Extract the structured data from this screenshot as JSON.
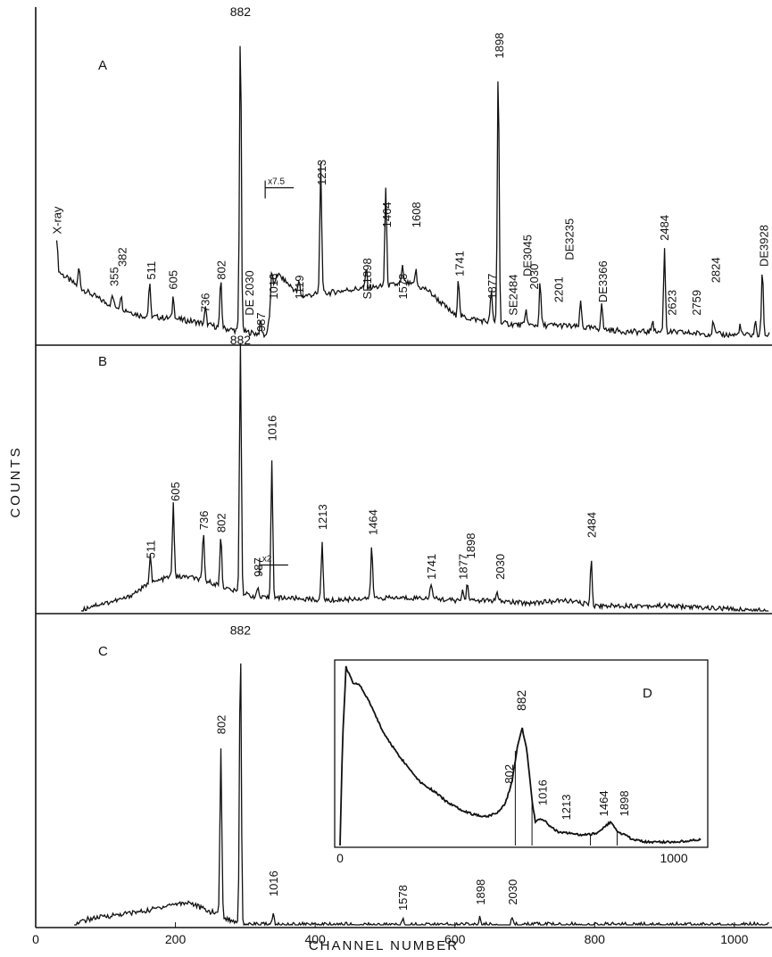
{
  "chart_data": {
    "type": "line",
    "xlabel": "CHANNEL NUMBER",
    "ylabel": "COUNTS",
    "xlim": [
      0,
      1050
    ],
    "x_ticks": [
      "0",
      "200",
      "400",
      "600",
      "800",
      "1000"
    ],
    "x_tick_values": [
      0,
      200,
      400,
      600,
      800,
      1000
    ],
    "panels": [
      {
        "id": "A",
        "label": "A",
        "baseline": [
          [
            30,
            0.22
          ],
          [
            60,
            0.17
          ],
          [
            100,
            0.12
          ],
          [
            150,
            0.08
          ],
          [
            200,
            0.07
          ],
          [
            230,
            0.06
          ],
          [
            270,
            0.04
          ],
          [
            300,
            0.03
          ],
          [
            330,
            0.02
          ],
          [
            345,
            0.21
          ],
          [
            380,
            0.14
          ],
          [
            420,
            0.15
          ],
          [
            450,
            0.16
          ],
          [
            500,
            0.17
          ],
          [
            530,
            0.18
          ],
          [
            560,
            0.16
          ],
          [
            600,
            0.08
          ],
          [
            650,
            0.06
          ],
          [
            700,
            0.05
          ],
          [
            750,
            0.05
          ],
          [
            800,
            0.04
          ],
          [
            850,
            0.03
          ],
          [
            900,
            0.03
          ],
          [
            1000,
            0.02
          ],
          [
            1050,
            0.02
          ]
        ],
        "peaks": [
          {
            "x": 30,
            "h": 0.1
          },
          {
            "x": 62,
            "h": 0.06
          },
          {
            "x": 110,
            "h": 0.03
          },
          {
            "x": 122,
            "h": 0.04
          },
          {
            "x": 163,
            "h": 0.1
          },
          {
            "x": 197,
            "h": 0.07
          },
          {
            "x": 243,
            "h": 0.05
          },
          {
            "x": 265,
            "h": 0.15
          },
          {
            "x": 293,
            "h": 0.94
          },
          {
            "x": 322,
            "h": 0.04
          },
          {
            "x": 338,
            "h": 0.1
          },
          {
            "x": 377,
            "h": 0.04
          },
          {
            "x": 408,
            "h": 0.4
          },
          {
            "x": 473,
            "h": 0.06
          },
          {
            "x": 501,
            "h": 0.3
          },
          {
            "x": 525,
            "h": 0.05
          },
          {
            "x": 544,
            "h": 0.05
          },
          {
            "x": 605,
            "h": 0.12
          },
          {
            "x": 652,
            "h": 0.1
          },
          {
            "x": 662,
            "h": 0.8
          },
          {
            "x": 702,
            "h": 0.05
          },
          {
            "x": 722,
            "h": 0.13
          },
          {
            "x": 780,
            "h": 0.08
          },
          {
            "x": 810,
            "h": 0.08
          },
          {
            "x": 883,
            "h": 0.04
          },
          {
            "x": 900,
            "h": 0.26
          },
          {
            "x": 970,
            "h": 0.04
          },
          {
            "x": 1008,
            "h": 0.03
          },
          {
            "x": 1030,
            "h": 0.04
          },
          {
            "x": 1040,
            "h": 0.2
          }
        ],
        "peak_labels": [
          {
            "text": "X-ray",
            "x": 30,
            "y": 0.33
          },
          {
            "text": "355",
            "x": 112,
            "y": 0.17
          },
          {
            "text": "382",
            "x": 123,
            "y": 0.23
          },
          {
            "text": "511",
            "x": 165,
            "y": 0.19
          },
          {
            "text": "605",
            "x": 196,
            "y": 0.16
          },
          {
            "text": "736",
            "x": 242,
            "y": 0.09
          },
          {
            "text": "802",
            "x": 265,
            "y": 0.19
          },
          {
            "text": "882",
            "x": 293,
            "y": 1.0
          },
          {
            "text": "DE 2030",
            "x": 305,
            "y": 0.08
          },
          {
            "text": "987",
            "x": 322,
            "y": 0.03
          },
          {
            "text": "1016",
            "x": 340,
            "y": 0.13
          },
          {
            "text": "x7.5",
            "x": 354,
            "y": 0.5
          },
          {
            "text": "1119",
            "x": 377,
            "y": 0.13
          },
          {
            "text": "1213",
            "x": 409,
            "y": 0.48
          },
          {
            "text": "SE1898",
            "x": 474,
            "y": 0.13
          },
          {
            "text": "1464",
            "x": 502,
            "y": 0.35
          },
          {
            "text": "1578",
            "x": 525,
            "y": 0.13
          },
          {
            "text": "1608",
            "x": 544,
            "y": 0.35
          },
          {
            "text": "1741",
            "x": 606,
            "y": 0.2
          },
          {
            "text": "1877",
            "x": 653,
            "y": 0.13
          },
          {
            "text": "1898",
            "x": 663,
            "y": 0.87
          },
          {
            "text": "SE2484",
            "x": 683,
            "y": 0.08
          },
          {
            "text": "DE3045",
            "x": 703,
            "y": 0.2
          },
          {
            "text": "2030",
            "x": 713,
            "y": 0.16
          },
          {
            "text": "2201",
            "x": 748,
            "y": 0.12
          },
          {
            "text": "DE3235",
            "x": 763,
            "y": 0.25
          },
          {
            "text": "DE3366",
            "x": 811,
            "y": 0.12
          },
          {
            "text": "2484",
            "x": 899,
            "y": 0.31
          },
          {
            "text": "2623",
            "x": 910,
            "y": 0.08
          },
          {
            "text": "2759",
            "x": 945,
            "y": 0.08
          },
          {
            "text": "2824",
            "x": 973,
            "y": 0.18
          },
          {
            "text": "DE3928",
            "x": 1042,
            "y": 0.23
          }
        ]
      },
      {
        "id": "B",
        "label": "B",
        "baseline": [
          [
            65,
            0.0
          ],
          [
            80,
            0.02
          ],
          [
            100,
            0.03
          ],
          [
            130,
            0.05
          ],
          [
            160,
            0.1
          ],
          [
            190,
            0.13
          ],
          [
            220,
            0.13
          ],
          [
            250,
            0.11
          ],
          [
            280,
            0.08
          ],
          [
            320,
            0.05
          ],
          [
            360,
            0.05
          ],
          [
            420,
            0.04
          ],
          [
            480,
            0.05
          ],
          [
            520,
            0.05
          ],
          [
            560,
            0.05
          ],
          [
            600,
            0.04
          ],
          [
            650,
            0.04
          ],
          [
            700,
            0.03
          ],
          [
            760,
            0.04
          ],
          [
            800,
            0.02
          ],
          [
            900,
            0.02
          ],
          [
            1050,
            0.0
          ]
        ],
        "peaks": [
          {
            "x": 164,
            "h": 0.12
          },
          {
            "x": 197,
            "h": 0.28
          },
          {
            "x": 240,
            "h": 0.18
          },
          {
            "x": 265,
            "h": 0.2
          },
          {
            "x": 293,
            "h": 0.96
          },
          {
            "x": 318,
            "h": 0.04
          },
          {
            "x": 338,
            "h": 0.53
          },
          {
            "x": 410,
            "h": 0.22
          },
          {
            "x": 481,
            "h": 0.2
          },
          {
            "x": 566,
            "h": 0.06
          },
          {
            "x": 611,
            "h": 0.04
          },
          {
            "x": 618,
            "h": 0.07
          },
          {
            "x": 660,
            "h": 0.03
          },
          {
            "x": 795,
            "h": 0.18
          }
        ],
        "peak_labels": [
          {
            "text": "511",
            "x": 164,
            "y": 0.2
          },
          {
            "text": "605",
            "x": 199,
            "y": 0.42
          },
          {
            "text": "736",
            "x": 240,
            "y": 0.31
          },
          {
            "text": "802",
            "x": 265,
            "y": 0.3
          },
          {
            "text": "882",
            "x": 293,
            "y": 1.02
          },
          {
            "text": "987",
            "x": 318,
            "y": 0.13
          },
          {
            "text": "1016",
            "x": 338,
            "y": 0.65
          },
          {
            "text": "x2",
            "x": 346,
            "y": 0.21
          },
          {
            "text": "1213",
            "x": 410,
            "y": 0.31
          },
          {
            "text": "1464",
            "x": 482,
            "y": 0.29
          },
          {
            "text": "1741",
            "x": 566,
            "y": 0.12
          },
          {
            "text": "1877",
            "x": 611,
            "y": 0.12
          },
          {
            "text": "1898",
            "x": 622,
            "y": 0.2
          },
          {
            "text": "2030",
            "x": 664,
            "y": 0.12
          },
          {
            "text": "2484",
            "x": 795,
            "y": 0.28
          }
        ]
      },
      {
        "id": "C",
        "label": "C",
        "baseline": [
          [
            55,
            0.0
          ],
          [
            75,
            0.02
          ],
          [
            100,
            0.03
          ],
          [
            130,
            0.04
          ],
          [
            160,
            0.05
          ],
          [
            190,
            0.07
          ],
          [
            220,
            0.08
          ],
          [
            245,
            0.05
          ],
          [
            260,
            0.04
          ],
          [
            275,
            0.02
          ],
          [
            300,
            0.0
          ],
          [
            1050,
            0.0
          ]
        ],
        "peaks": [
          {
            "x": 265,
            "h": 0.59
          },
          {
            "x": 293,
            "h": 0.99
          },
          {
            "x": 340,
            "h": 0.04
          },
          {
            "x": 525,
            "h": 0.02
          },
          {
            "x": 636,
            "h": 0.03
          },
          {
            "x": 682,
            "h": 0.02
          }
        ],
        "peak_labels": [
          {
            "text": "802",
            "x": 265,
            "y": 0.67
          },
          {
            "text": "882",
            "x": 293,
            "y": 1.02
          },
          {
            "text": "1016",
            "x": 340,
            "y": 0.1
          },
          {
            "text": "1578",
            "x": 525,
            "y": 0.05
          },
          {
            "text": "1898",
            "x": 636,
            "y": 0.07
          },
          {
            "text": "2030",
            "x": 682,
            "y": 0.07
          }
        ]
      },
      {
        "id": "D",
        "label": "D",
        "inset": true,
        "xlim": [
          0,
          1080
        ],
        "x_ticks": [
          "0",
          "1000"
        ],
        "x_tick_values": [
          0,
          1000
        ],
        "curve": [
          [
            0,
            0.0
          ],
          [
            8,
            0.6
          ],
          [
            18,
            0.98
          ],
          [
            25,
            0.95
          ],
          [
            40,
            0.89
          ],
          [
            60,
            0.88
          ],
          [
            90,
            0.78
          ],
          [
            130,
            0.62
          ],
          [
            170,
            0.51
          ],
          [
            200,
            0.44
          ],
          [
            240,
            0.35
          ],
          [
            280,
            0.3
          ],
          [
            320,
            0.24
          ],
          [
            360,
            0.2
          ],
          [
            400,
            0.17
          ],
          [
            440,
            0.16
          ],
          [
            470,
            0.18
          ],
          [
            495,
            0.23
          ],
          [
            515,
            0.35
          ],
          [
            530,
            0.53
          ],
          [
            545,
            0.65
          ],
          [
            560,
            0.52
          ],
          [
            575,
            0.25
          ],
          [
            585,
            0.13
          ],
          [
            600,
            0.15
          ],
          [
            615,
            0.13
          ],
          [
            640,
            0.09
          ],
          [
            660,
            0.07
          ],
          [
            690,
            0.07
          ],
          [
            710,
            0.06
          ],
          [
            750,
            0.06
          ],
          [
            770,
            0.07
          ],
          [
            790,
            0.1
          ],
          [
            810,
            0.13
          ],
          [
            830,
            0.08
          ],
          [
            860,
            0.05
          ],
          [
            880,
            0.03
          ],
          [
            920,
            0.02
          ],
          [
            960,
            0.02
          ],
          [
            1000,
            0.02
          ],
          [
            1010,
            0.02
          ],
          [
            1060,
            0.03
          ],
          [
            1080,
            0.03
          ]
        ],
        "peak_labels": [
          {
            "text": "802",
            "x": 505,
            "y": 0.34
          },
          {
            "text": "882",
            "x": 540,
            "y": 0.74
          },
          {
            "text": "1016",
            "x": 605,
            "y": 0.22
          },
          {
            "text": "1213",
            "x": 677,
            "y": 0.14
          },
          {
            "text": "1464",
            "x": 788,
            "y": 0.16
          },
          {
            "text": "1898",
            "x": 850,
            "y": 0.16
          }
        ]
      }
    ]
  }
}
